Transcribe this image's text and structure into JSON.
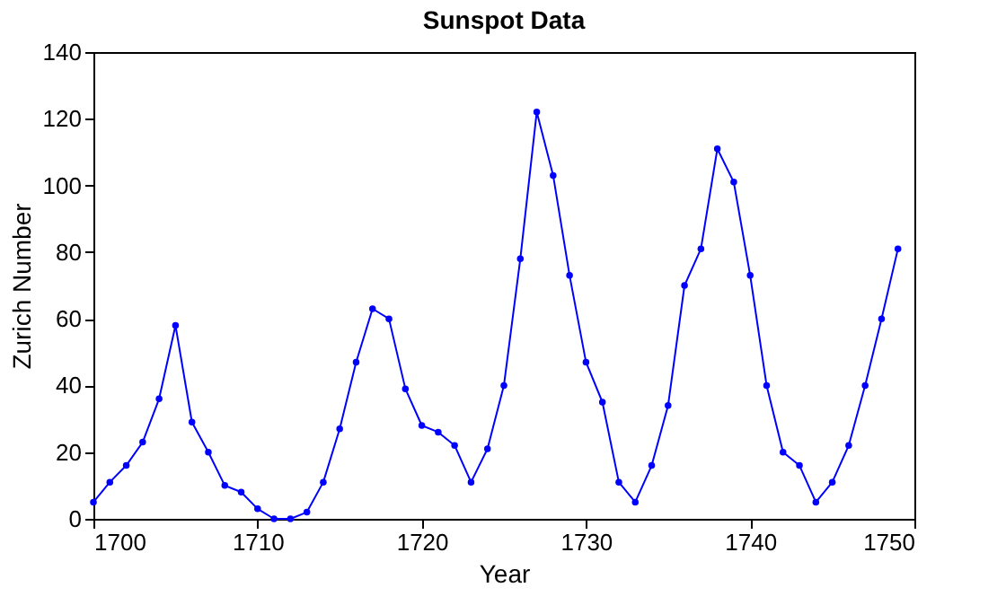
{
  "chart_data": {
    "type": "line",
    "title": "Sunspot Data",
    "xlabel": "Year",
    "ylabel": "Zurich Number",
    "x": [
      1700,
      1701,
      1702,
      1703,
      1704,
      1705,
      1706,
      1707,
      1708,
      1709,
      1710,
      1711,
      1712,
      1713,
      1714,
      1715,
      1716,
      1717,
      1718,
      1719,
      1720,
      1721,
      1722,
      1723,
      1724,
      1725,
      1726,
      1727,
      1728,
      1729,
      1730,
      1731,
      1732,
      1733,
      1734,
      1735,
      1736,
      1737,
      1738,
      1739,
      1740,
      1741,
      1742,
      1743,
      1744,
      1745,
      1746,
      1747,
      1748,
      1749
    ],
    "series": [
      {
        "color": "#0000ff",
        "values": [
          5,
          11,
          16,
          23,
          36,
          58,
          29,
          20,
          10,
          8,
          3,
          0,
          0,
          2,
          11,
          27,
          47,
          63,
          60,
          39,
          28,
          26,
          22,
          11,
          21,
          40,
          78,
          122,
          103,
          73,
          47,
          35,
          11,
          5,
          16,
          34,
          70,
          81,
          111,
          101,
          73,
          40,
          20,
          16,
          5,
          11,
          22,
          40,
          60,
          81
        ]
      }
    ],
    "xlim": [
      1700,
      1750
    ],
    "xticks": [
      1700,
      1710,
      1720,
      1730,
      1740,
      1750
    ],
    "ylim": [
      0,
      140
    ],
    "yticks": [
      0,
      20,
      40,
      60,
      80,
      100,
      120,
      140
    ],
    "grid": false,
    "marker": "circle",
    "line_style": "solid"
  }
}
